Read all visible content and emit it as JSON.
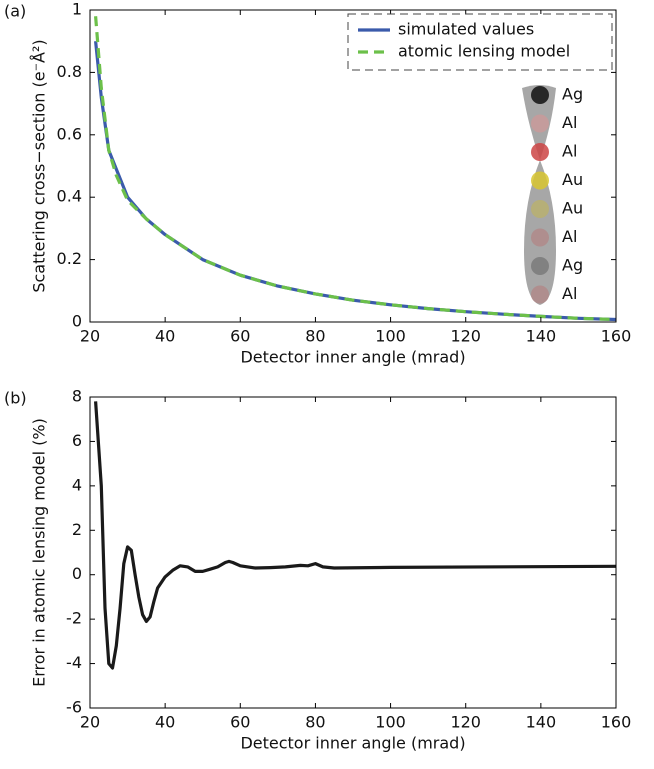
{
  "chart_data": [
    {
      "type": "line",
      "panel_label": "(a)",
      "xlabel": "Detector inner angle (mrad)",
      "ylabel": "Scattering cross−section (e⁻Å²)",
      "x": [
        21.5,
        23,
        25,
        27,
        30,
        35,
        40,
        50,
        60,
        70,
        80,
        90,
        100,
        110,
        120,
        130,
        140,
        150,
        160
      ],
      "series": [
        {
          "name": "simulated values",
          "color": "#3b5bab",
          "dash": false,
          "values": [
            0.9,
            0.72,
            0.55,
            0.49,
            0.4,
            0.33,
            0.28,
            0.2,
            0.15,
            0.115,
            0.09,
            0.07,
            0.055,
            0.043,
            0.033,
            0.025,
            0.018,
            0.012,
            0.008
          ]
        },
        {
          "name": "atomic lensing model",
          "color": "#6cc04a",
          "dash": true,
          "values": [
            0.98,
            0.75,
            0.55,
            0.47,
            0.39,
            0.33,
            0.28,
            0.2,
            0.15,
            0.115,
            0.09,
            0.07,
            0.055,
            0.043,
            0.033,
            0.025,
            0.018,
            0.012,
            0.008
          ]
        }
      ],
      "xlim": [
        20,
        160
      ],
      "xticks": [
        20,
        40,
        60,
        80,
        100,
        120,
        140,
        160
      ],
      "ylim": [
        0,
        1
      ],
      "yticks": [
        0,
        0.2,
        0.4,
        0.6,
        0.8,
        1
      ],
      "legend": "upper right",
      "annotations": [
        {
          "text": "Ag",
          "color": "#111111"
        },
        {
          "text": "Al",
          "color": "#c99a9a"
        },
        {
          "text": "Al",
          "color": "#cc4444"
        },
        {
          "text": "Au",
          "color": "#d8c530"
        },
        {
          "text": "Au",
          "color": "#b8b070"
        },
        {
          "text": "Al",
          "color": "#b08a8a"
        },
        {
          "text": "Ag",
          "color": "#7a7a7a"
        },
        {
          "text": "Al",
          "color": "#b08a8a"
        }
      ]
    },
    {
      "type": "line",
      "panel_label": "(b)",
      "xlabel": "Detector inner angle (mrad)",
      "ylabel": "Error in atomic lensing model (%)",
      "x": [
        21.5,
        23,
        24,
        25,
        26,
        27,
        28,
        29,
        30,
        31,
        32,
        33,
        34,
        35,
        36,
        37,
        38,
        40,
        42,
        44,
        46,
        48,
        50,
        52,
        54,
        56,
        57,
        58,
        60,
        64,
        68,
        72,
        76,
        78,
        80,
        82,
        85,
        100,
        160
      ],
      "series": [
        {
          "name": "error",
          "color": "#1a1a1a",
          "dash": false,
          "values": [
            7.8,
            4,
            -1.5,
            -4,
            -4.2,
            -3.2,
            -1.5,
            0.5,
            1.25,
            1.1,
            0,
            -1,
            -1.8,
            -2.1,
            -1.9,
            -1.2,
            -0.6,
            -0.1,
            0.2,
            0.4,
            0.35,
            0.15,
            0.15,
            0.25,
            0.35,
            0.55,
            0.6,
            0.55,
            0.4,
            0.3,
            0.32,
            0.35,
            0.42,
            0.4,
            0.5,
            0.35,
            0.3,
            0.33,
            0.38
          ]
        }
      ],
      "xlim": [
        20,
        160
      ],
      "xticks": [
        20,
        40,
        60,
        80,
        100,
        120,
        140,
        160
      ],
      "ylim": [
        -6,
        8
      ],
      "yticks": [
        -6,
        -4,
        -2,
        0,
        2,
        4,
        6,
        8
      ]
    }
  ]
}
